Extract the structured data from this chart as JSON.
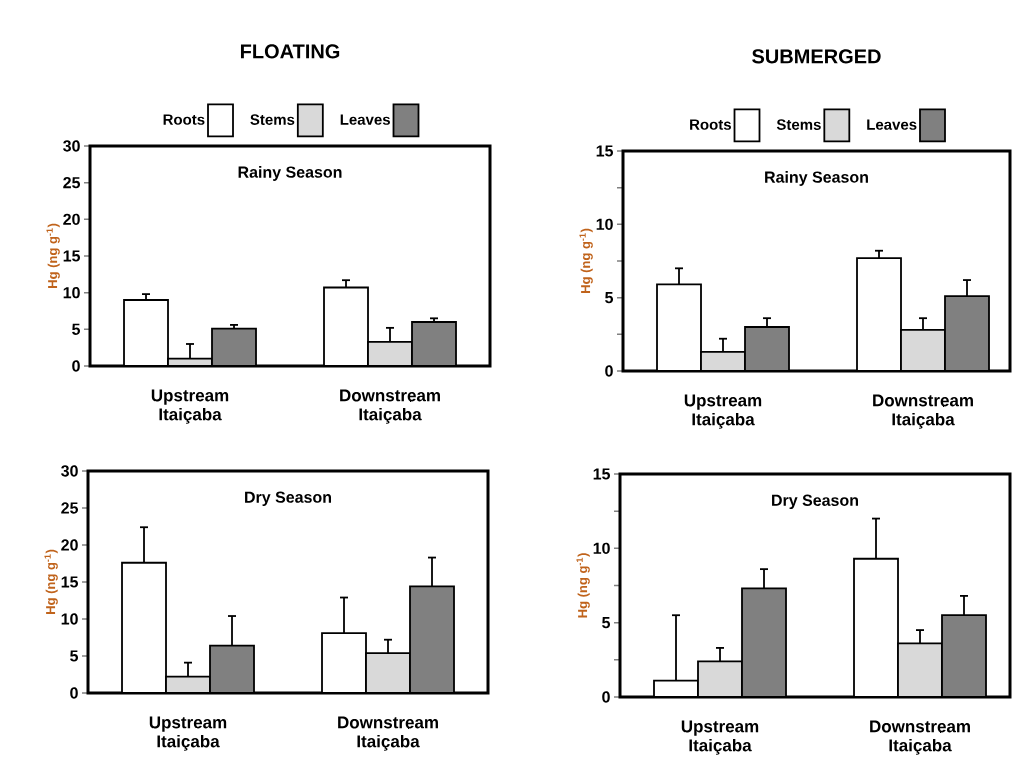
{
  "chart_data": [
    {
      "type": "bar",
      "title": "FLOATING",
      "subtitle": "Rainy Season",
      "ylabel": "Hg (ng g$^{-1}$)",
      "categories": [
        "Upstream Itaiçaba",
        "Downstream Itaiçaba"
      ],
      "ylim": [
        0,
        30
      ],
      "yticks": [
        0,
        5,
        10,
        15,
        20,
        25,
        30
      ],
      "legend": "top",
      "series": [
        {
          "name": "Roots",
          "color": "#ffffff",
          "values": [
            9.0,
            10.7
          ],
          "errors": [
            0.8,
            1.0
          ]
        },
        {
          "name": "Stems",
          "color": "#d9d9d9",
          "values": [
            1.0,
            3.3
          ],
          "errors": [
            2.0,
            1.9
          ]
        },
        {
          "name": "Leaves",
          "color": "#808080",
          "values": [
            5.1,
            6.0
          ],
          "errors": [
            0.5,
            0.5
          ]
        }
      ]
    },
    {
      "type": "bar",
      "title": "SUBMERGED",
      "subtitle": "Rainy Season",
      "ylabel": "Hg (ng g$^{-1}$)",
      "categories": [
        "Upstream Itaiçaba",
        "Downstream Itaiçaba"
      ],
      "ylim": [
        0,
        15
      ],
      "yticks": [
        0,
        {
          "value": 2.5,
          "label": null
        },
        5,
        {
          "value": 7.5,
          "label": null
        },
        10,
        {
          "value": 12.5,
          "label": null
        },
        15
      ],
      "legend": "top",
      "series": [
        {
          "name": "Roots",
          "color": "#ffffff",
          "values": [
            5.9,
            7.7
          ],
          "errors": [
            1.1,
            0.5
          ]
        },
        {
          "name": "Stems",
          "color": "#d9d9d9",
          "values": [
            1.3,
            2.8
          ],
          "errors": [
            0.9,
            0.8
          ]
        },
        {
          "name": "Leaves",
          "color": "#808080",
          "values": [
            3.0,
            5.1
          ],
          "errors": [
            0.6,
            1.1
          ]
        }
      ]
    },
    {
      "type": "bar",
      "subtitle": "Dry Season",
      "ylabel": "Hg (ng g$^{-1}$)",
      "categories": [
        "Upstream Itaiçaba",
        "Downstream Itaiçaba"
      ],
      "ylim": [
        0,
        30
      ],
      "yticks": [
        0,
        5,
        10,
        15,
        20,
        25,
        30
      ],
      "series": [
        {
          "color": "#ffffff",
          "values": [
            17.6,
            8.1
          ],
          "errors": [
            4.8,
            4.8
          ]
        },
        {
          "color": "#d9d9d9",
          "values": [
            2.2,
            5.4
          ],
          "errors": [
            1.9,
            1.8
          ]
        },
        {
          "color": "#808080",
          "values": [
            6.4,
            14.4
          ],
          "errors": [
            4.0,
            3.9
          ]
        }
      ]
    },
    {
      "type": "bar",
      "subtitle": "Dry Season",
      "ylabel": "Hg (ng g$^{-1}$)",
      "categories": [
        "Upstream Itaiçaba",
        "Downstream Itaiçaba"
      ],
      "ylim": [
        0,
        15
      ],
      "yticks": [
        0,
        {
          "value": 2.5,
          "label": null
        },
        5,
        {
          "value": 7.5,
          "label": null
        },
        10,
        {
          "value": 12.5,
          "label": null
        },
        15
      ],
      "series": [
        {
          "color": "#ffffff",
          "values": [
            1.1,
            9.3
          ],
          "errors": [
            4.4,
            2.7
          ]
        },
        {
          "color": "#d9d9d9",
          "values": [
            2.4,
            3.6
          ],
          "errors": [
            0.9,
            0.9
          ]
        },
        {
          "color": "#808080",
          "values": [
            7.3,
            5.5
          ],
          "errors": [
            1.3,
            1.3
          ]
        }
      ]
    }
  ]
}
